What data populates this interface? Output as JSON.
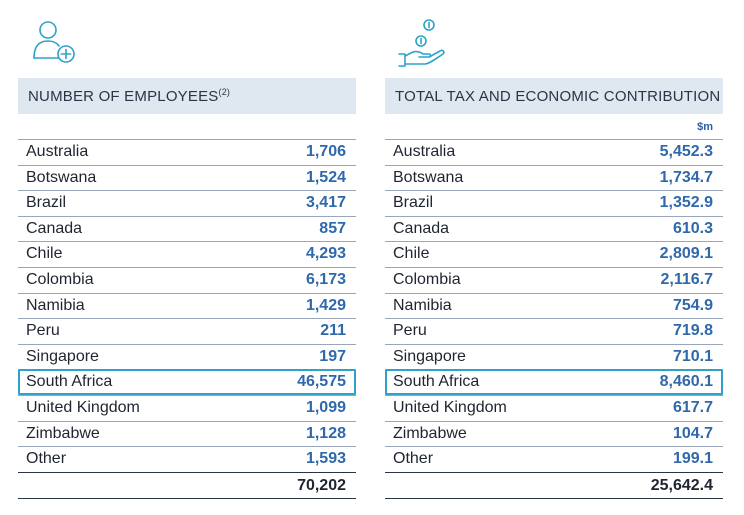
{
  "employees": {
    "header": "NUMBER OF EMPLOYEES",
    "footnote": "(2)",
    "rows": [
      {
        "country": "Australia",
        "value": "1,706"
      },
      {
        "country": "Botswana",
        "value": "1,524"
      },
      {
        "country": "Brazil",
        "value": "3,417"
      },
      {
        "country": "Canada",
        "value": "857"
      },
      {
        "country": "Chile",
        "value": "4,293"
      },
      {
        "country": "Colombia",
        "value": "6,173"
      },
      {
        "country": "Namibia",
        "value": "1,429"
      },
      {
        "country": "Peru",
        "value": "211"
      },
      {
        "country": "Singapore",
        "value": "197"
      },
      {
        "country": "South Africa",
        "value": "46,575"
      },
      {
        "country": "United Kingdom",
        "value": "1,099"
      },
      {
        "country": "Zimbabwe",
        "value": "1,128"
      },
      {
        "country": "Other",
        "value": "1,593"
      }
    ],
    "total": "70,202"
  },
  "tax": {
    "header": "TOTAL TAX AND ECONOMIC CONTRIBUTION",
    "unit": "$m",
    "rows": [
      {
        "country": "Australia",
        "value": "5,452.3"
      },
      {
        "country": "Botswana",
        "value": "1,734.7"
      },
      {
        "country": "Brazil",
        "value": "1,352.9"
      },
      {
        "country": "Canada",
        "value": "610.3"
      },
      {
        "country": "Chile",
        "value": "2,809.1"
      },
      {
        "country": "Colombia",
        "value": "2,116.7"
      },
      {
        "country": "Namibia",
        "value": "754.9"
      },
      {
        "country": "Peru",
        "value": "719.8"
      },
      {
        "country": "Singapore",
        "value": "710.1"
      },
      {
        "country": "South Africa",
        "value": "8,460.1"
      },
      {
        "country": "United Kingdom",
        "value": "617.7"
      },
      {
        "country": "Zimbabwe",
        "value": "104.7"
      },
      {
        "country": "Other",
        "value": "199.1"
      }
    ],
    "total": "25,642.4"
  },
  "highlight_country": "South Africa",
  "colors": {
    "accent": "#2ea3c9",
    "value_blue": "#2f68ab",
    "header_bg": "#dfe7f0"
  },
  "icons": {
    "left": "add-person-icon",
    "right": "hand-with-coins-icon"
  }
}
